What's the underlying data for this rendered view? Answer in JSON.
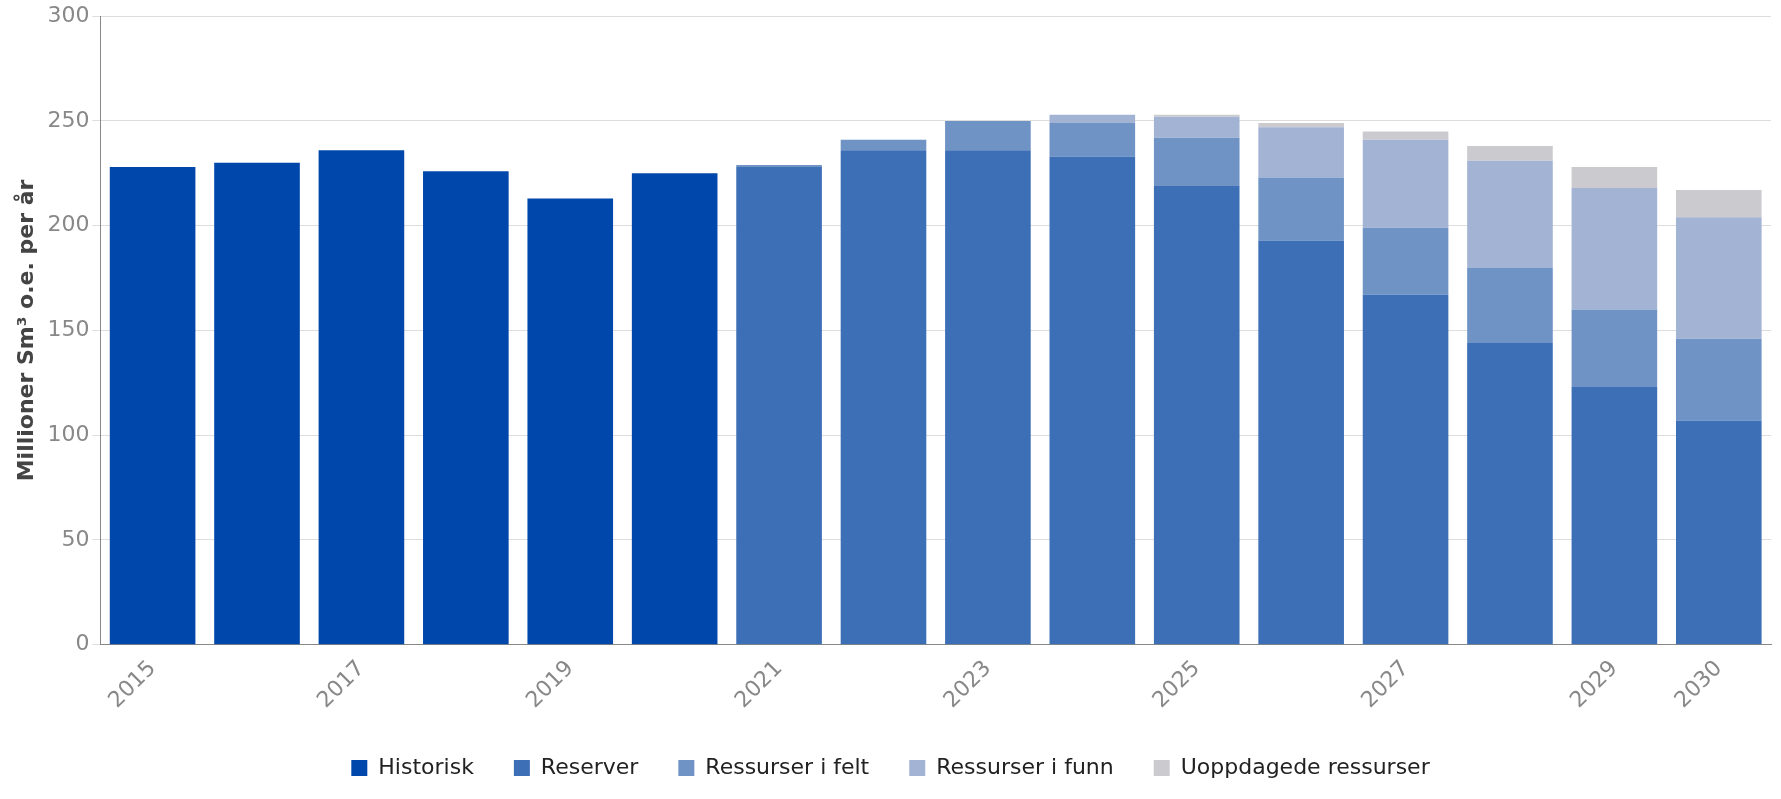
{
  "chart_data": {
    "type": "bar",
    "stacked": true,
    "ylabel": "Millioner Sm³ o.e. per år",
    "categories": [
      "2015",
      null,
      "2017",
      null,
      "2019",
      null,
      "2021",
      null,
      "2023",
      null,
      "2025",
      null,
      "2027",
      null,
      "2029",
      "2030"
    ],
    "series": [
      {
        "name": "Historisk",
        "color": "#0047ab",
        "values": [
          228,
          230,
          236,
          226,
          213,
          225,
          null,
          null,
          null,
          null,
          null,
          null,
          null,
          null,
          null,
          null
        ]
      },
      {
        "name": "Reserver",
        "color": "#3d6fb6",
        "values": [
          null,
          null,
          null,
          null,
          null,
          null,
          228,
          236,
          236,
          233,
          219,
          193,
          167,
          144,
          123,
          107
        ]
      },
      {
        "name": "Ressurser i felt",
        "color": "#6e93c4",
        "values": [
          null,
          null,
          null,
          null,
          null,
          null,
          1,
          5,
          14,
          16,
          23,
          30,
          32,
          36,
          37,
          39
        ]
      },
      {
        "name": "Ressurser i funn",
        "color": "#a3b3d4",
        "values": [
          null,
          null,
          null,
          null,
          null,
          null,
          null,
          null,
          null,
          4,
          10,
          24,
          42,
          51,
          58,
          58
        ]
      },
      {
        "name": "Uoppdagede ressurser",
        "color": "#cbcbcf",
        "values": [
          null,
          null,
          null,
          null,
          null,
          null,
          null,
          null,
          null,
          null,
          1,
          2,
          4,
          7,
          10,
          13
        ]
      }
    ],
    "ylim": [
      0,
      300
    ],
    "yticks": [
      0,
      50,
      100,
      150,
      200,
      250,
      300
    ],
    "grid": "y",
    "legend": "bottom",
    "marker": "square"
  }
}
